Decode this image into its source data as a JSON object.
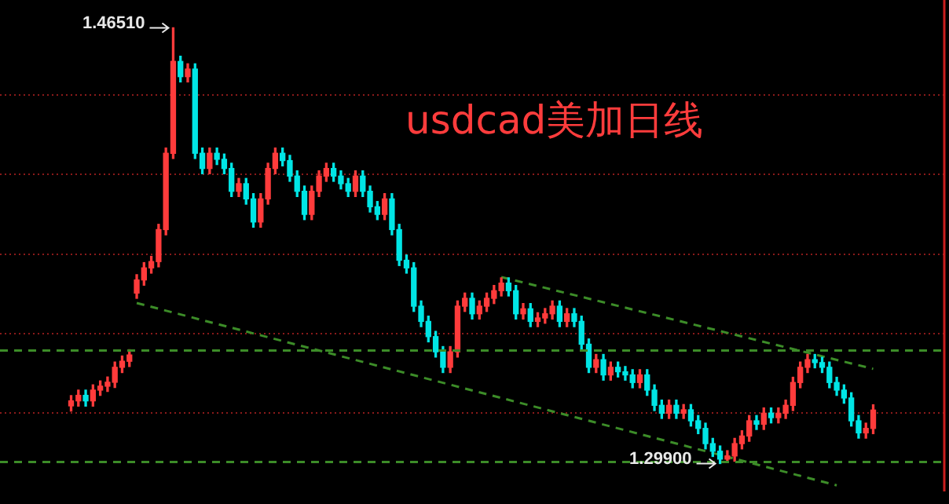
{
  "chart_data": {
    "type": "candlestick",
    "title": "usdcad美加日线",
    "categories": [
      null,
      null,
      null,
      null,
      null,
      null,
      null,
      null,
      null,
      null,
      null,
      null,
      null,
      null,
      null,
      null,
      null,
      null,
      null,
      null,
      null,
      null,
      null,
      null,
      null,
      null,
      null,
      null,
      null,
      null,
      null,
      null,
      null,
      null,
      null,
      null,
      null,
      null,
      null,
      null,
      null,
      null,
      null,
      null,
      null,
      null,
      null,
      null,
      null,
      null,
      null,
      null,
      null,
      null,
      null,
      null,
      null,
      null,
      null,
      null,
      null,
      null,
      null,
      null,
      null,
      null,
      null,
      null,
      null,
      null,
      null,
      null,
      null,
      null,
      null,
      null,
      null,
      null,
      null,
      null,
      null,
      null,
      null,
      null,
      null,
      null,
      null,
      null,
      null,
      null,
      null,
      null,
      null,
      null,
      null,
      null,
      null,
      null,
      null,
      null,
      null,
      null,
      null,
      null,
      null,
      null,
      null,
      null,
      null,
      null,
      null
    ],
    "ohlc": [
      [
        1.321,
        1.3249,
        1.319,
        1.3229
      ],
      [
        1.3229,
        1.327,
        1.3209,
        1.325
      ],
      [
        1.325,
        1.327,
        1.3209,
        1.3229
      ],
      [
        1.3229,
        1.329,
        1.3209,
        1.327
      ],
      [
        1.327,
        1.3305,
        1.325,
        1.3285
      ],
      [
        1.3285,
        1.332,
        1.3265,
        1.33
      ],
      [
        1.33,
        1.3377,
        1.328,
        1.3357
      ],
      [
        1.3357,
        1.34,
        1.3337,
        1.338
      ],
      [
        1.338,
        1.3424,
        1.336,
        1.3404
      ],
      [
        1.364,
        1.371,
        1.362,
        1.369
      ],
      [
        1.369,
        1.3756,
        1.367,
        1.3736
      ],
      [
        1.3736,
        1.378,
        1.3716,
        1.376
      ],
      [
        1.376,
        1.3902,
        1.374,
        1.3882
      ],
      [
        1.3882,
        1.4193,
        1.3862,
        1.4173
      ],
      [
        1.4173,
        1.4651,
        1.4153,
        1.4523
      ],
      [
        1.4523,
        1.4543,
        1.4445,
        1.4465
      ],
      [
        1.4465,
        1.4514,
        1.4445,
        1.4494
      ],
      [
        1.4494,
        1.4514,
        1.4153,
        1.4173
      ],
      [
        1.4173,
        1.4193,
        1.4095,
        1.4115
      ],
      [
        1.4115,
        1.4193,
        1.4095,
        1.4173
      ],
      [
        1.4173,
        1.4193,
        1.413,
        1.415
      ],
      [
        1.415,
        1.417,
        1.4095,
        1.4115
      ],
      [
        1.4115,
        1.4135,
        1.4008,
        1.4028
      ],
      [
        1.4028,
        1.4077,
        1.4008,
        1.4057
      ],
      [
        1.4057,
        1.4077,
        1.3979,
        1.3999
      ],
      [
        1.3999,
        1.4019,
        1.3891,
        1.3911
      ],
      [
        1.3911,
        1.4019,
        1.3891,
        1.3999
      ],
      [
        1.3999,
        1.4135,
        1.3979,
        1.4115
      ],
      [
        1.4115,
        1.4193,
        1.4095,
        1.4173
      ],
      [
        1.4173,
        1.4193,
        1.4125,
        1.4145
      ],
      [
        1.4145,
        1.4165,
        1.4066,
        1.4086
      ],
      [
        1.4086,
        1.4106,
        1.4008,
        1.4028
      ],
      [
        1.4028,
        1.4048,
        1.392,
        1.394
      ],
      [
        1.394,
        1.4048,
        1.392,
        1.4028
      ],
      [
        1.4028,
        1.4106,
        1.4008,
        1.4086
      ],
      [
        1.4086,
        1.4135,
        1.4066,
        1.4115
      ],
      [
        1.4115,
        1.4135,
        1.4066,
        1.4086
      ],
      [
        1.4086,
        1.4106,
        1.4037,
        1.4057
      ],
      [
        1.4057,
        1.4077,
        1.4008,
        1.4028
      ],
      [
        1.4028,
        1.4106,
        1.4008,
        1.4086
      ],
      [
        1.4086,
        1.4106,
        1.4008,
        1.4028
      ],
      [
        1.4028,
        1.4048,
        1.3949,
        1.3969
      ],
      [
        1.3969,
        1.3989,
        1.392,
        1.394
      ],
      [
        1.394,
        1.4019,
        1.392,
        1.3999
      ],
      [
        1.3999,
        1.4019,
        1.3862,
        1.3882
      ],
      [
        1.3882,
        1.3902,
        1.3745,
        1.3765
      ],
      [
        1.3765,
        1.3785,
        1.3716,
        1.3736
      ],
      [
        1.3736,
        1.3756,
        1.357,
        1.359
      ],
      [
        1.359,
        1.361,
        1.3512,
        1.3532
      ],
      [
        1.3532,
        1.3552,
        1.3454,
        1.3474
      ],
      [
        1.3474,
        1.3494,
        1.3396,
        1.3416
      ],
      [
        1.3416,
        1.3436,
        1.3337,
        1.3357
      ],
      [
        1.3357,
        1.3436,
        1.3337,
        1.3416
      ],
      [
        1.3416,
        1.361,
        1.3396,
        1.359
      ],
      [
        1.359,
        1.364,
        1.357,
        1.362
      ],
      [
        1.362,
        1.364,
        1.3541,
        1.3561
      ],
      [
        1.3561,
        1.361,
        1.3541,
        1.359
      ],
      [
        1.359,
        1.364,
        1.357,
        1.362
      ],
      [
        1.362,
        1.3669,
        1.36,
        1.3649
      ],
      [
        1.3649,
        1.3698,
        1.3629,
        1.3678
      ],
      [
        1.3678,
        1.3698,
        1.3629,
        1.3649
      ],
      [
        1.3649,
        1.3669,
        1.3541,
        1.3561
      ],
      [
        1.3561,
        1.36,
        1.3541,
        1.358
      ],
      [
        1.358,
        1.36,
        1.3512,
        1.3532
      ],
      [
        1.3532,
        1.3565,
        1.3512,
        1.3545
      ],
      [
        1.3545,
        1.3581,
        1.3525,
        1.3561
      ],
      [
        1.3561,
        1.361,
        1.3541,
        1.359
      ],
      [
        1.359,
        1.361,
        1.3512,
        1.3532
      ],
      [
        1.3532,
        1.3581,
        1.3512,
        1.3561
      ],
      [
        1.3561,
        1.3581,
        1.3512,
        1.3532
      ],
      [
        1.3532,
        1.3552,
        1.3425,
        1.3445
      ],
      [
        1.3445,
        1.3465,
        1.3337,
        1.3357
      ],
      [
        1.3357,
        1.3406,
        1.3337,
        1.3386
      ],
      [
        1.3386,
        1.3406,
        1.3308,
        1.3328
      ],
      [
        1.3328,
        1.3377,
        1.3308,
        1.3357
      ],
      [
        1.3357,
        1.3377,
        1.332,
        1.334
      ],
      [
        1.334,
        1.336,
        1.3308,
        1.3328
      ],
      [
        1.3328,
        1.3348,
        1.3279,
        1.3299
      ],
      [
        1.3299,
        1.3348,
        1.3279,
        1.3328
      ],
      [
        1.3328,
        1.3348,
        1.325,
        1.327
      ],
      [
        1.327,
        1.329,
        1.3192,
        1.3212
      ],
      [
        1.3212,
        1.3232,
        1.3162,
        1.3182
      ],
      [
        1.3182,
        1.3232,
        1.3162,
        1.3212
      ],
      [
        1.3212,
        1.3232,
        1.3162,
        1.3182
      ],
      [
        1.3182,
        1.3215,
        1.3162,
        1.3195
      ],
      [
        1.3195,
        1.3215,
        1.3133,
        1.3153
      ],
      [
        1.3153,
        1.3173,
        1.3104,
        1.3124
      ],
      [
        1.3124,
        1.3144,
        1.3046,
        1.3066
      ],
      [
        1.3066,
        1.3086,
        1.3017,
        1.3037
      ],
      [
        1.3037,
        1.3057,
        1.299,
        1.3007
      ],
      [
        1.3007,
        1.3039,
        1.2995,
        1.3019
      ],
      [
        1.3019,
        1.3086,
        1.2999,
        1.3066
      ],
      [
        1.3066,
        1.3115,
        1.3046,
        1.3095
      ],
      [
        1.3095,
        1.3173,
        1.3075,
        1.3153
      ],
      [
        1.3153,
        1.3173,
        1.312,
        1.314
      ],
      [
        1.314,
        1.3202,
        1.312,
        1.3182
      ],
      [
        1.3182,
        1.3202,
        1.3145,
        1.3165
      ],
      [
        1.3165,
        1.3202,
        1.3145,
        1.3182
      ],
      [
        1.3182,
        1.3232,
        1.3162,
        1.3212
      ],
      [
        1.3212,
        1.3319,
        1.3192,
        1.3299
      ],
      [
        1.3299,
        1.3377,
        1.3279,
        1.3357
      ],
      [
        1.3357,
        1.3406,
        1.3337,
        1.3386
      ],
      [
        1.3386,
        1.3406,
        1.3355,
        1.3375
      ],
      [
        1.3375,
        1.3395,
        1.3337,
        1.3357
      ],
      [
        1.3357,
        1.3377,
        1.3279,
        1.3299
      ],
      [
        1.3299,
        1.3319,
        1.325,
        1.327
      ],
      [
        1.327,
        1.329,
        1.322,
        1.324
      ],
      [
        1.324,
        1.326,
        1.3133,
        1.3153
      ],
      [
        1.3153,
        1.3173,
        1.3087,
        1.3107
      ],
      [
        1.3107,
        1.3144,
        1.3087,
        1.3124
      ],
      [
        1.3124,
        1.3214,
        1.3104,
        1.3194
      ]
    ],
    "colors": [
      "#ff3b3b",
      "#ff3b3b",
      "#00e5e5",
      "#ff3b3b",
      "#ff3b3b",
      "#ff3b3b",
      "#ff3b3b",
      "#ff3b3b",
      "#ff3b3b",
      "#ff3b3b",
      "#ff3b3b",
      "#ff3b3b",
      "#ff3b3b",
      "#ff3b3b",
      "#ff3b3b",
      "#00e5e5",
      "#ff3b3b",
      "#00e5e5",
      "#00e5e5",
      "#ff3b3b",
      "#00e5e5",
      "#00e5e5",
      "#00e5e5",
      "#ff3b3b",
      "#00e5e5",
      "#00e5e5",
      "#ff3b3b",
      "#ff3b3b",
      "#ff3b3b",
      "#00e5e5",
      "#00e5e5",
      "#00e5e5",
      "#00e5e5",
      "#ff3b3b",
      "#ff3b3b",
      "#ff3b3b",
      "#00e5e5",
      "#00e5e5",
      "#00e5e5",
      "#ff3b3b",
      "#00e5e5",
      "#00e5e5",
      "#00e5e5",
      "#ff3b3b",
      "#00e5e5",
      "#00e5e5",
      "#00e5e5",
      "#00e5e5",
      "#00e5e5",
      "#00e5e5",
      "#00e5e5",
      "#00e5e5",
      "#ff3b3b",
      "#ff3b3b",
      "#ff3b3b",
      "#00e5e5",
      "#ff3b3b",
      "#ff3b3b",
      "#ff3b3b",
      "#ff3b3b",
      "#00e5e5",
      "#00e5e5",
      "#ff3b3b",
      "#00e5e5",
      "#ff3b3b",
      "#ff3b3b",
      "#ff3b3b",
      "#00e5e5",
      "#ff3b3b",
      "#00e5e5",
      "#00e5e5",
      "#00e5e5",
      "#ff3b3b",
      "#00e5e5",
      "#ff3b3b",
      "#00e5e5",
      "#00e5e5",
      "#00e5e5",
      "#ff3b3b",
      "#00e5e5",
      "#00e5e5",
      "#00e5e5",
      "#ff3b3b",
      "#00e5e5",
      "#ff3b3b",
      "#00e5e5",
      "#00e5e5",
      "#00e5e5",
      "#00e5e5",
      "#00e5e5",
      "#ff3b3b",
      "#ff3b3b",
      "#ff3b3b",
      "#ff3b3b",
      "#00e5e5",
      "#ff3b3b",
      "#00e5e5",
      "#ff3b3b",
      "#ff3b3b",
      "#ff3b3b",
      "#ff3b3b",
      "#ff3b3b",
      "#00e5e5",
      "#00e5e5",
      "#00e5e5",
      "#00e5e5",
      "#00e5e5",
      "#00e5e5",
      "#00e5e5",
      "#ff3b3b",
      "#ff3b3b"
    ],
    "series": [
      {
        "type": "line",
        "values": [
          null,
          null,
          null,
          null,
          null,
          null,
          null,
          null,
          null,
          1.3602,
          null,
          null,
          null,
          null,
          null,
          null,
          null,
          null,
          null,
          null,
          null,
          null,
          null,
          null,
          null,
          null,
          null,
          null,
          null,
          null,
          null,
          null,
          null,
          null,
          null,
          null,
          null,
          null,
          null,
          null,
          null,
          null,
          null,
          null,
          null,
          null,
          null,
          null,
          null,
          null,
          null,
          null,
          null,
          null,
          null,
          null,
          null,
          null,
          null,
          null,
          null,
          null,
          null,
          null,
          null,
          null,
          null,
          null,
          null,
          null,
          null,
          null,
          null,
          null,
          null,
          null,
          null,
          null,
          null,
          null,
          null,
          null,
          null,
          null,
          null,
          null,
          null,
          null,
          null,
          null,
          null,
          null,
          null,
          null,
          null,
          null,
          null,
          null,
          null,
          null,
          null,
          null,
          null,
          null,
          null,
          1.2907,
          null,
          null,
          null,
          null,
          null
        ],
        "color": "#3c8c28",
        "line_style": "dashed",
        "marker": "none"
      },
      {
        "type": "line",
        "values": [
          null,
          null,
          null,
          null,
          null,
          null,
          null,
          null,
          null,
          null,
          null,
          null,
          null,
          null,
          null,
          null,
          null,
          null,
          null,
          null,
          null,
          null,
          null,
          null,
          null,
          null,
          null,
          null,
          null,
          null,
          null,
          null,
          null,
          null,
          null,
          null,
          null,
          null,
          null,
          null,
          null,
          null,
          null,
          null,
          null,
          null,
          null,
          null,
          null,
          null,
          null,
          null,
          null,
          null,
          null,
          null,
          null,
          null,
          null,
          1.3701,
          null,
          null,
          null,
          null,
          null,
          null,
          null,
          null,
          null,
          null,
          null,
          null,
          null,
          null,
          null,
          null,
          null,
          null,
          null,
          null,
          null,
          null,
          null,
          null,
          null,
          null,
          null,
          null,
          null,
          null,
          null,
          null,
          null,
          null,
          null,
          null,
          null,
          null,
          null,
          null,
          null,
          null,
          null,
          null,
          null,
          null,
          null,
          null,
          null,
          null,
          1.3351
        ],
        "color": "#3c8c28",
        "line_style": "dashed",
        "marker": "none"
      }
    ],
    "ref_lines": [
      {
        "axis": "y",
        "value": 1.3421,
        "color": "#3c8c28",
        "line_style": "dashed"
      },
      {
        "axis": "y",
        "value": 1.2996,
        "color": "#3c8c28",
        "line_style": "dashed"
      }
    ],
    "annotations": [
      "1.46510",
      "1.29900"
    ],
    "yticks": [
      {
        "value": 1.3182,
        "label": null
      },
      {
        "value": 1.3486,
        "label": null
      },
      {
        "value": 1.3789,
        "label": null
      },
      {
        "value": 1.4092,
        "label": null
      },
      {
        "value": 1.4395,
        "label": null
      }
    ],
    "grid": "y",
    "tick_labels": false
  }
}
